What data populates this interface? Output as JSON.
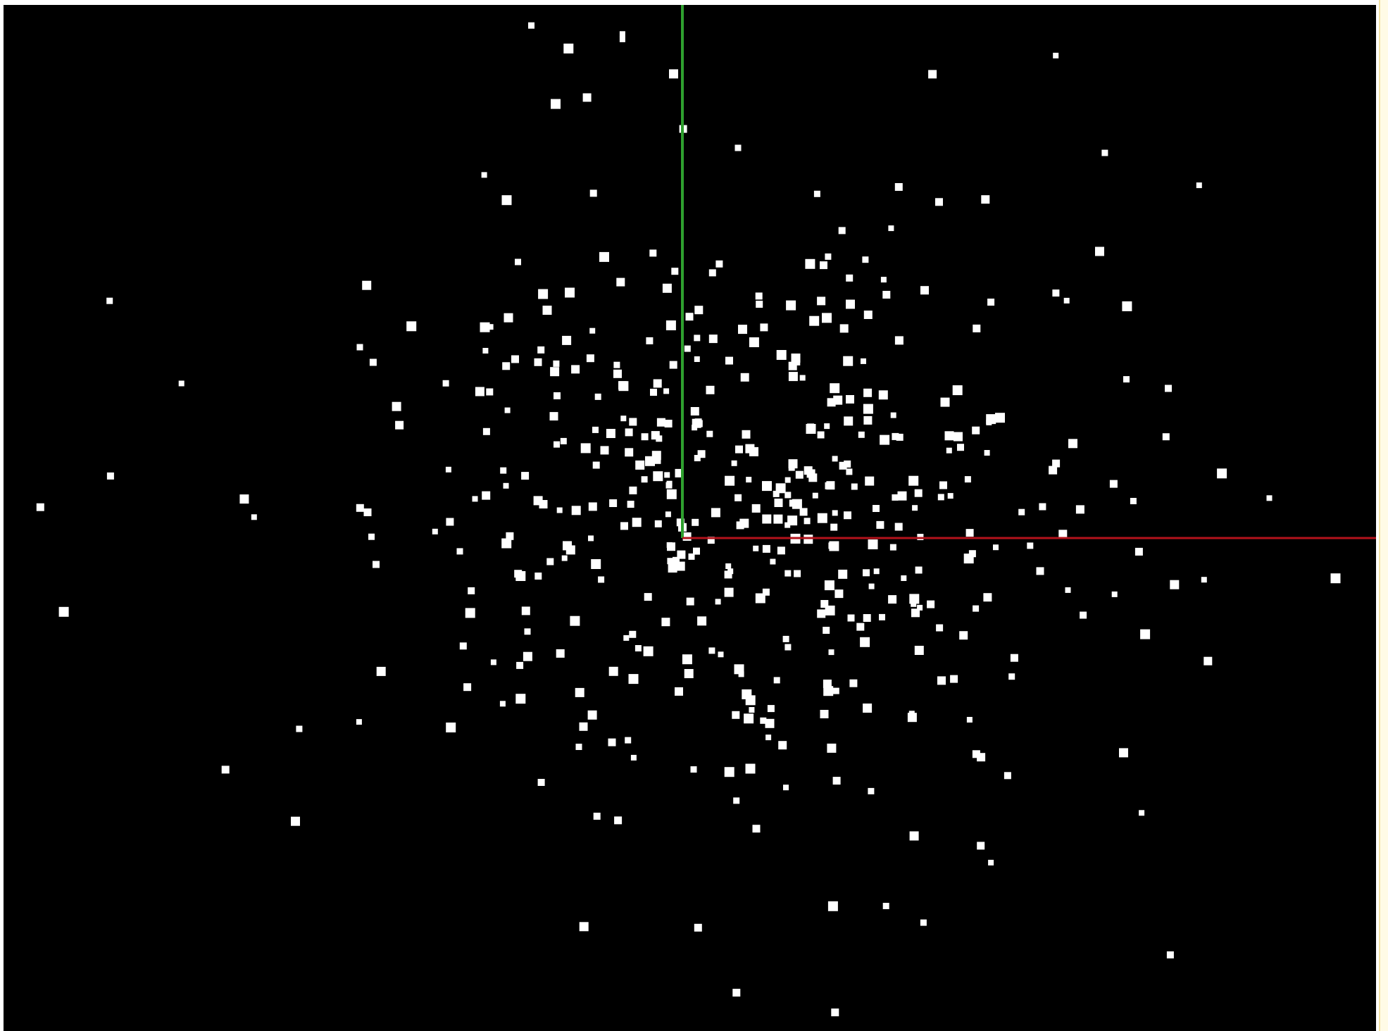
{
  "scene": {
    "background_color": "#000000",
    "frame_color": "#ffffff",
    "point_color": "#ffffff",
    "axes": {
      "x_axis": {
        "name": "x-axis",
        "color": "#b3121b"
      },
      "y_axis": {
        "name": "y-axis",
        "color": "#2ea02e"
      }
    },
    "point_count": 470
  }
}
